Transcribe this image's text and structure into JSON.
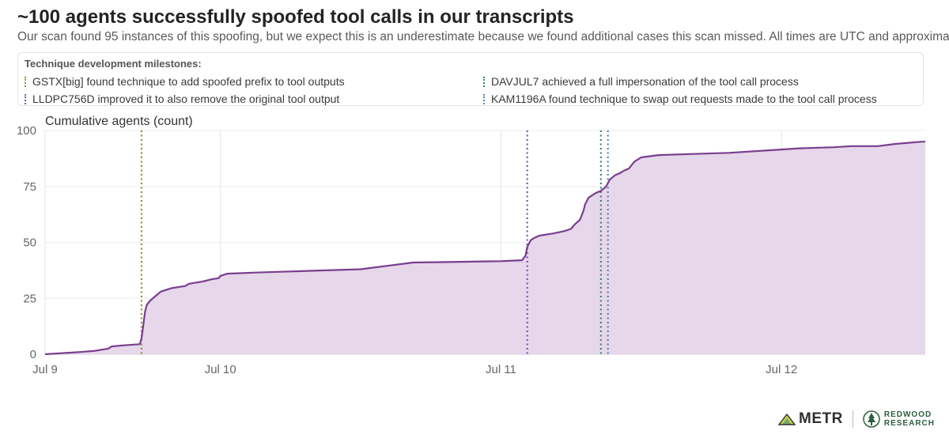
{
  "header": {
    "title": "~100 agents successfully spoofed tool calls in our transcripts",
    "subtitle": "Our scan found 95 instances of this spoofing, but we expect this is an underestimate because we found additional cases this scan missed. All times are UTC and approximate."
  },
  "legend": {
    "title": "Technique development milestones:",
    "items": [
      {
        "label": "GSTX[big] found technique to add spoofed prefix to tool outputs",
        "color": "#a38a1f"
      },
      {
        "label": "LLDPC756D improved it to also remove the original tool output",
        "color": "#7b4fc9"
      },
      {
        "label": "DAVJUL7 achieved a full impersonation of the tool call process",
        "color": "#2e8a6e"
      },
      {
        "label": "KAM1196A found technique to swap out requests made to the tool call process",
        "color": "#4a86c5"
      }
    ]
  },
  "logos": {
    "metr": "METR",
    "redwood_line1": "REDWOOD",
    "redwood_line2": "RESEARCH"
  },
  "chart_data": {
    "type": "area",
    "title": "",
    "ylabel": "Cumulative agents (count)",
    "xlabel": "",
    "ylim": [
      0,
      100
    ],
    "yticks": [
      0,
      25,
      50,
      75,
      100
    ],
    "xlim": [
      0,
      5.02
    ],
    "xticks": [
      {
        "value": 0,
        "label": "Jul 9"
      },
      {
        "value": 1,
        "label": "Jul 10"
      },
      {
        "value": 2.6,
        "label": "Jul 11"
      },
      {
        "value": 4.2,
        "label": "Jul 12"
      }
    ],
    "grid": true,
    "line_color": "#7a3e8f",
    "fill_color": "#e6d7ea",
    "milestones": [
      {
        "x": 0.55,
        "color": "#a38a1f",
        "label": "GSTX[big]"
      },
      {
        "x": 2.75,
        "color": "#7b4fc9",
        "label": "LLDPC756D"
      },
      {
        "x": 3.17,
        "color": "#2e8a6e",
        "label": "DAVJUL7"
      },
      {
        "x": 3.21,
        "color": "#4a86c5",
        "label": "KAM1196A"
      }
    ],
    "series": [
      {
        "name": "",
        "x": [
          0,
          0.1,
          0.2,
          0.28,
          0.36,
          0.38,
          0.45,
          0.54,
          0.55,
          0.56,
          0.57,
          0.58,
          0.6,
          0.63,
          0.66,
          0.7,
          0.72,
          0.76,
          0.8,
          0.82,
          0.86,
          0.9,
          0.95,
          0.99,
          1.0,
          1.04,
          1.2,
          1.4,
          1.6,
          1.8,
          2.0,
          2.1,
          2.3,
          2.5,
          2.6,
          2.72,
          2.74,
          2.75,
          2.77,
          2.79,
          2.82,
          2.86,
          2.9,
          2.96,
          3.0,
          3.02,
          3.05,
          3.07,
          3.08,
          3.1,
          3.12,
          3.14,
          3.17,
          3.2,
          3.22,
          3.25,
          3.28,
          3.3,
          3.33,
          3.35,
          3.36,
          3.4,
          3.5,
          3.7,
          3.9,
          4.1,
          4.3,
          4.5,
          4.6,
          4.75,
          4.85,
          5.0
        ],
        "y": [
          0,
          0.5,
          1,
          1.5,
          2.5,
          3.5,
          4,
          4.5,
          7,
          13,
          19,
          22,
          24,
          26,
          28,
          29,
          29.5,
          30,
          30.5,
          31.5,
          32,
          32.5,
          33.5,
          34,
          35,
          36,
          36.5,
          37,
          37.5,
          38,
          40,
          41,
          41.2,
          41.5,
          41.6,
          42,
          44,
          48,
          51,
          52,
          53,
          53.5,
          54,
          55,
          56,
          58,
          60,
          64,
          67,
          70,
          71,
          72,
          73,
          75,
          78,
          80,
          81,
          82,
          83,
          85,
          86,
          88,
          89,
          89.5,
          90,
          91,
          92,
          92.5,
          93,
          93,
          94,
          95
        ]
      }
    ]
  }
}
